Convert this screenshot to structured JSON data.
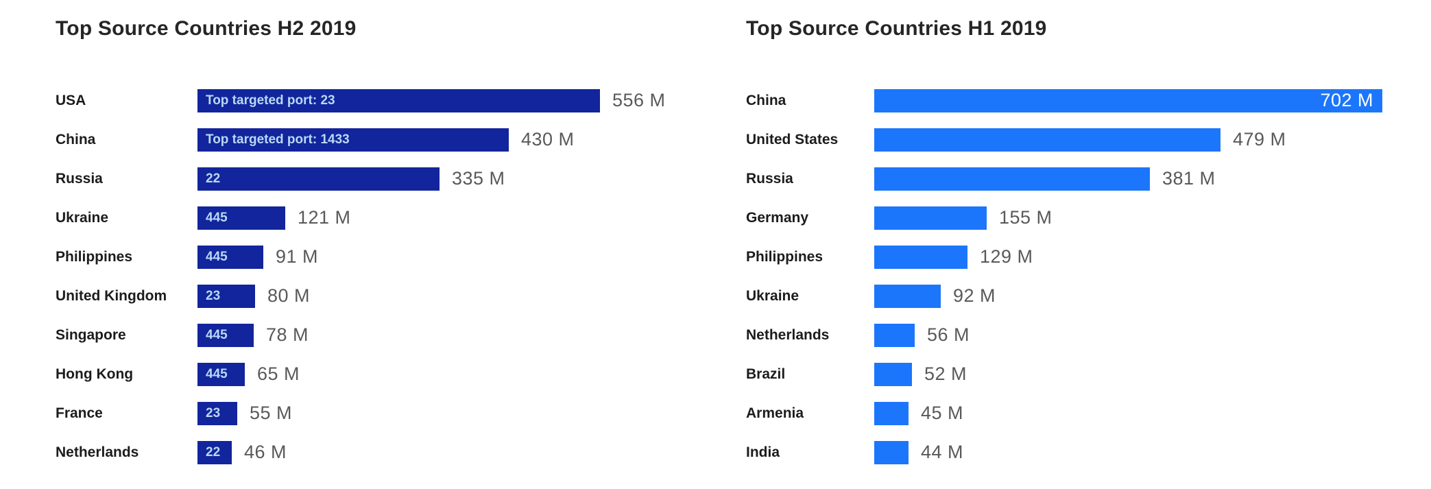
{
  "page": {
    "background_color": "#ffffff"
  },
  "chart_data": [
    {
      "type": "bar",
      "orientation": "horizontal",
      "title": "Top Source Countries H2 2019",
      "title_color": "#262626",
      "unit": "M",
      "categories": [
        "USA",
        "China",
        "Russia",
        "Ukraine",
        "Philippines",
        "United Kingdom",
        "Singapore",
        "Hong Kong",
        "France",
        "Netherlands"
      ],
      "values": [
        556,
        430,
        335,
        121,
        91,
        80,
        78,
        65,
        55,
        46
      ],
      "value_labels": [
        "556 M",
        "430 M",
        "335 M",
        "121 M",
        "91 M",
        "80 M",
        "78 M",
        "65 M",
        "55 M",
        "46 M"
      ],
      "bar_annotations": [
        "Top targeted port: 23",
        "Top targeted port: 1433",
        "22",
        "445",
        "445",
        "23",
        "445",
        "445",
        "23",
        "22"
      ],
      "value_label_inside": [
        false,
        false,
        false,
        false,
        false,
        false,
        false,
        false,
        false,
        false
      ],
      "bar_color": "#12259c",
      "annotation_text_color": "#b9d9f5",
      "inside_value_color": "#ffffff",
      "value_text_color": "#58595b",
      "grid": false,
      "axis_labels": "none",
      "xlim": [
        0,
        750
      ]
    },
    {
      "type": "bar",
      "orientation": "horizontal",
      "title": "Top Source Countries H1 2019",
      "title_color": "#262626",
      "unit": "M",
      "categories": [
        "China",
        "United States",
        "Russia",
        "Germany",
        "Philippines",
        "Ukraine",
        "Netherlands",
        "Brazil",
        "Armenia",
        "India"
      ],
      "values": [
        702,
        479,
        381,
        155,
        129,
        92,
        56,
        52,
        45,
        44
      ],
      "value_labels": [
        "702 M",
        "479 M",
        "381 M",
        "155 M",
        "129 M",
        "92 M",
        "56 M",
        "52 M",
        "45 M",
        "44 M"
      ],
      "bar_annotations": [
        "",
        "",
        "",
        "",
        "",
        "",
        "",
        "",
        "",
        ""
      ],
      "value_label_inside": [
        true,
        false,
        false,
        false,
        false,
        false,
        false,
        false,
        false,
        false
      ],
      "bar_color": "#1b76fb",
      "annotation_text_color": "#ffffff",
      "inside_value_color": "#ffffff",
      "value_text_color": "#58595b",
      "grid": false,
      "axis_labels": "none",
      "xlim": [
        0,
        750
      ]
    }
  ]
}
